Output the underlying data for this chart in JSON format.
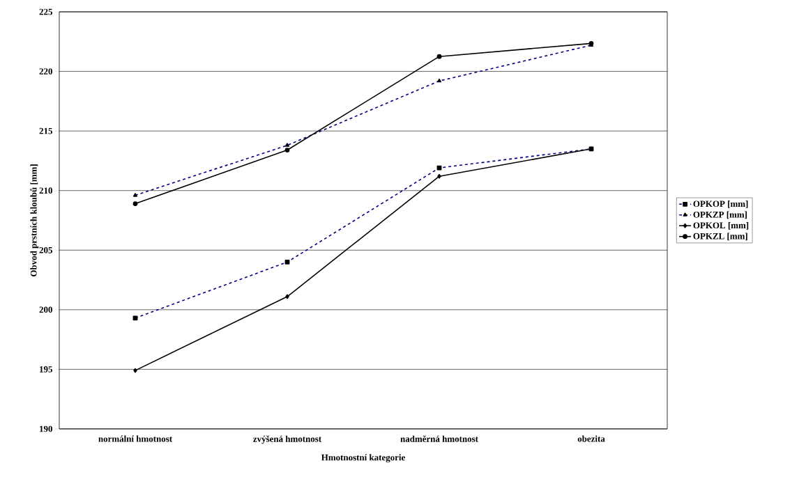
{
  "chart_data": {
    "type": "line",
    "xlabel": "Hmotnostní  kategorie",
    "ylabel": "Obvod prstních kloubů [mm]",
    "categories": [
      "normální hmotnost",
      "zvýšená hmotnost",
      "nadměrná hmotnost",
      "obezita"
    ],
    "ylim": [
      190,
      225
    ],
    "yticks": [
      190,
      195,
      200,
      205,
      210,
      215,
      220,
      225
    ],
    "grid": "y",
    "legend": "right",
    "series": [
      {
        "name": "OPKOP [mm]",
        "color": "#000080",
        "marker": "square",
        "line_style": "dashed",
        "values": [
          199.3,
          204.0,
          211.9,
          213.5
        ]
      },
      {
        "name": "OPKZP [mm]",
        "color": "#000080",
        "marker": "triangle",
        "line_style": "dashed",
        "values": [
          209.6,
          213.8,
          219.2,
          222.2
        ]
      },
      {
        "name": "OPKOL [mm]",
        "color": "#000000",
        "marker": "diamond",
        "line_style": "solid",
        "values": [
          194.9,
          201.1,
          211.2,
          213.5
        ]
      },
      {
        "name": "OPKZL [mm]",
        "color": "#000000",
        "marker": "circle",
        "line_style": "solid",
        "values": [
          208.9,
          213.4,
          221.25,
          222.35
        ]
      }
    ]
  }
}
